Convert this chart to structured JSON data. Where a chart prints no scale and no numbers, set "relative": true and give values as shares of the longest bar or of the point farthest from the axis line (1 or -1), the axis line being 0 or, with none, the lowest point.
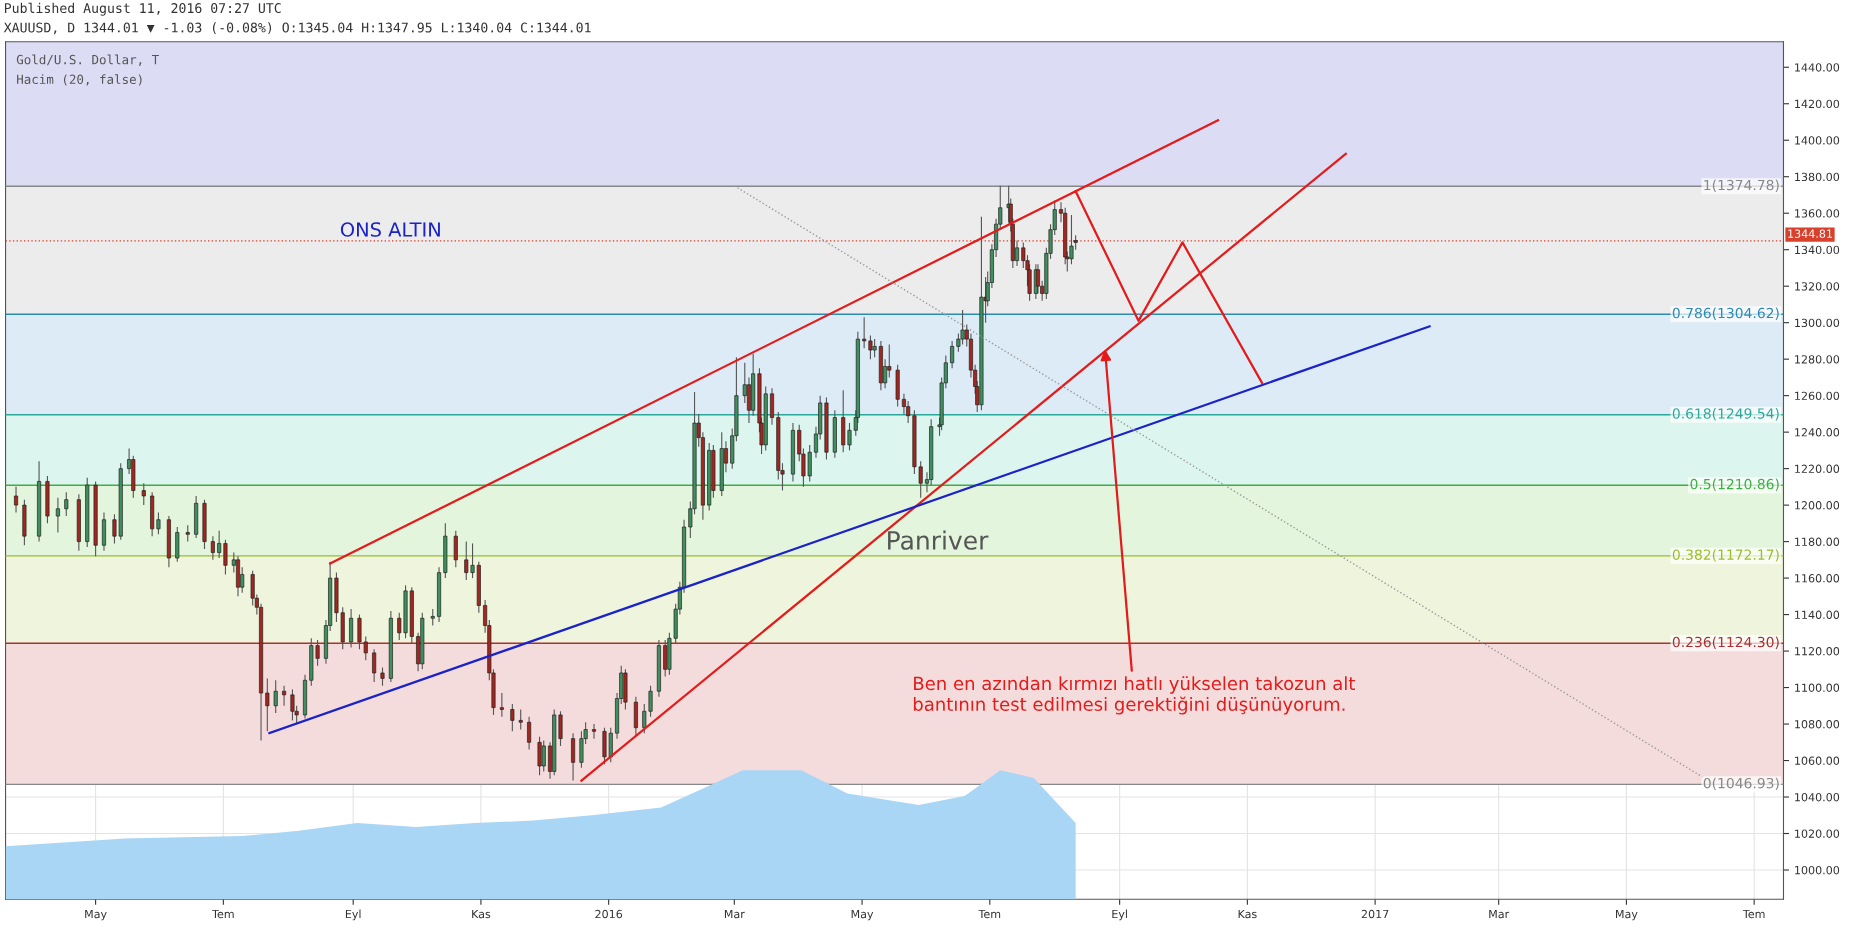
{
  "chart_data": [
    {
      "type": "candlestick",
      "grid": true,
      "annotations": [
        "Published August 11, 2016 07:27 UTC",
        "XAUUSD, D 1344.01 ▼ -1.03 (-0.08%) O:1345.04 H:1347.95 L:1340.04 C:1344.01",
        "Gold/U.S. Dollar, T",
        "Hacim (20, false)",
        "ONS ALTIN",
        "Panriver",
        {
          "text": "Ben en azından kırmızı hatlı yükselen takozun alt\nbantının test edilmesi gerektiğini düşünüyorum.",
          "x": "2016-08-25",
          "y": 1285.4
        }
      ],
      "xlim": [
        "2015-03-19",
        "2017-07-15"
      ],
      "xticks": [
        {
          "value": "2015-05-01",
          "label": "May"
        },
        {
          "value": "2015-07-01",
          "label": "Tem"
        },
        {
          "value": "2015-09-01",
          "label": "Eyl"
        },
        {
          "value": "2015-11-01",
          "label": "Kas"
        },
        {
          "value": "2016-01-01",
          "label": "2016"
        },
        {
          "value": "2016-03-01",
          "label": "Mar"
        },
        {
          "value": "2016-05-01",
          "label": "May"
        },
        {
          "value": "2016-07-01",
          "label": "Tem"
        },
        {
          "value": "2016-09-01",
          "label": "Eyl"
        },
        {
          "value": "2016-11-01",
          "label": "Kas"
        },
        {
          "value": "2017-01-01",
          "label": "2017"
        },
        {
          "value": "2017-03-01",
          "label": "Mar"
        },
        {
          "value": "2017-05-01",
          "label": "May"
        },
        {
          "value": "2017-07-01",
          "label": "Tem"
        }
      ],
      "ylim": [
        984,
        1454
      ],
      "yticks": [
        {
          "value": 1000,
          "label": "1000.00"
        },
        {
          "value": 1020,
          "label": "1020.00"
        },
        {
          "value": 1040,
          "label": "1040.00"
        },
        {
          "value": 1060,
          "label": "1060.00"
        },
        {
          "value": 1080,
          "label": "1080.00"
        },
        {
          "value": 1100,
          "label": "1100.00"
        },
        {
          "value": 1120,
          "label": "1120.00"
        },
        {
          "value": 1140,
          "label": "1140.00"
        },
        {
          "value": 1160,
          "label": "1160.00"
        },
        {
          "value": 1180,
          "label": "1180.00"
        },
        {
          "value": 1200,
          "label": "1200.00"
        },
        {
          "value": 1220,
          "label": "1220.00"
        },
        {
          "value": 1240,
          "label": "1240.00"
        },
        {
          "value": 1260,
          "label": "1260.00"
        },
        {
          "value": 1280,
          "label": "1280.00"
        },
        {
          "value": 1300,
          "label": "1300.00"
        },
        {
          "value": 1320,
          "label": "1320.00"
        },
        {
          "value": 1340,
          "label": "1340.00"
        },
        {
          "value": 1360,
          "label": "1360.00"
        },
        {
          "value": 1380,
          "label": "1380.00"
        },
        {
          "value": 1400,
          "label": "1400.00"
        },
        {
          "value": 1420,
          "label": "1420.00"
        },
        {
          "value": 1440,
          "label": "1440.00"
        }
      ],
      "bands": [
        {
          "axis": "y",
          "from": 1374.78,
          "to": 1454,
          "color": "#dcdcf5"
        },
        {
          "axis": "y",
          "from": 1304.62,
          "to": 1374.78,
          "color": "#ececec"
        },
        {
          "axis": "y",
          "from": 1249.54,
          "to": 1304.62,
          "color": "#ddebf6"
        },
        {
          "axis": "y",
          "from": 1210.86,
          "to": 1249.54,
          "color": "#ddf5ef"
        },
        {
          "axis": "y",
          "from": 1172.17,
          "to": 1210.86,
          "color": "#e3f5dc"
        },
        {
          "axis": "y",
          "from": 1124.3,
          "to": 1172.17,
          "color": "#eef5dc"
        },
        {
          "axis": "y",
          "from": 1046.93,
          "to": 1124.3,
          "color": "#f5dcdc"
        }
      ],
      "ref_lines": [
        {
          "axis": "y",
          "value": 1374.78,
          "label": "1(1374.78)",
          "color": "#888888"
        },
        {
          "axis": "y",
          "value": 1304.62,
          "label": "0.786(1304.62)",
          "color": "#2a8ab8"
        },
        {
          "axis": "y",
          "value": 1249.54,
          "label": "0.618(1249.54)",
          "color": "#2aa89a"
        },
        {
          "axis": "y",
          "value": 1210.86,
          "label": "0.5(1210.86)",
          "color": "#3cb043"
        },
        {
          "axis": "y",
          "value": 1172.17,
          "label": "0.382(1172.17)",
          "color": "#9cbc2c"
        },
        {
          "axis": "y",
          "value": 1124.3,
          "label": "0.236(1124.30)",
          "color": "#a83232"
        },
        {
          "axis": "y",
          "value": 1046.93,
          "label": "0(1046.93)",
          "color": "#888888"
        },
        {
          "axis": "y",
          "value": 1344.81,
          "label": "1344.81",
          "color": "#d9402b",
          "line_style": "dotted"
        }
      ],
      "series": [
        {
          "type": "line",
          "color": "#e31b1b",
          "x": [
            "2015-08-21",
            "2016-10-18"
          ],
          "values": [
            1168,
            1411
          ]
        },
        {
          "type": "line",
          "color": "#e31b1b",
          "x": [
            "2015-12-19",
            "2016-12-18"
          ],
          "values": [
            1049,
            1392.6
          ]
        },
        {
          "type": "line",
          "color": "#1a22c8",
          "x": [
            "2015-07-23",
            "2017-01-27"
          ],
          "values": [
            1075,
            1298
          ]
        },
        {
          "type": "line",
          "color": "#999999",
          "line_style": "dotted",
          "x": [
            "2016-03-01",
            "2017-06-12"
          ],
          "values": [
            1375,
            1047
          ]
        },
        {
          "type": "line",
          "color": "#e31b1b",
          "x": [
            "2016-08-11",
            "2016-09-10",
            "2016-10-01",
            "2016-11-08"
          ],
          "values": [
            1372,
            1301,
            1344,
            1267
          ]
        },
        {
          "type": "candlestick",
          "colors": [
            "#a3261f",
            "#a3261f",
            "#3f8f5f",
            "#a3261f",
            "#3f8f5f",
            "#3f8f5f",
            "#a3261f",
            "#3f8f5f",
            "#a3261f",
            "#3f8f5f",
            "#a3261f",
            "#3f8f5f",
            "#3f8f5f",
            "#a3261f",
            "#a3261f",
            "#a3261f",
            "#3f8f5f",
            "#a3261f",
            "#3f8f5f",
            "#a3261f",
            "#3f8f5f",
            "#a3261f",
            "#a3261f",
            "#3f8f5f",
            "#a3261f",
            "#3f8f5f",
            "#a3261f",
            "#3f8f5f",
            "#a3261f",
            "#a3261f",
            "#a3261f",
            "#a3261f",
            "#3f8f5f",
            "#a3261f",
            "#a3261f",
            "#a3261f",
            "#3f8f5f",
            "#3f8f5f",
            "#a3261f",
            "#3f8f5f",
            "#3f8f5f",
            "#a3261f",
            "#a3261f",
            "#3f8f5f",
            "#a3261f",
            "#a3261f",
            "#a3261f",
            "#a3261f",
            "#3f8f5f",
            "#a3261f",
            "#3f8f5f",
            "#a3261f",
            "#a3261f",
            "#3f8f5f",
            "#3f8f5f",
            "#3f8f5f",
            "#3f8f5f",
            "#a3261f",
            "#a3261f",
            "#3f8f5f",
            "#a3261f",
            "#a3261f",
            "#a3261f",
            "#a3261f",
            "#a3261f",
            "#a3261f",
            "#a3261f",
            "#a3261f",
            "#a3261f",
            "#3f8f5f",
            "#a3261f",
            "#3f8f5f",
            "#a3261f",
            "#a3261f",
            "#3f8f5f",
            "#3f8f5f",
            "#a3261f",
            "#a3261f",
            "#3f8f5f",
            "#3f8f5f",
            "#3f8f5f",
            "#a3261f",
            "#a3261f",
            "#3f8f5f",
            "#3f8f5f",
            "#3f8f5f",
            "#a3261f",
            "#3f8f5f",
            "#3f8f5f",
            "#3f8f5f",
            "#3f8f5f",
            "#3f8f5f",
            "#3f8f5f",
            "#a3261f",
            "#a3261f",
            "#3f8f5f",
            "#a3261f",
            "#3f8f5f",
            "#a3261f",
            "#3f8f5f",
            "#3f8f5f",
            "#3f8f5f",
            "#a3261f",
            "#3f8f5f",
            "#a3261f",
            "#a3261f",
            "#3f8f5f",
            "#a3261f",
            "#a3261f",
            "#a3261f",
            "#3f8f5f",
            "#a3261f",
            "#a3261f",
            "#3f8f5f",
            "#3f8f5f",
            "#3f8f5f",
            "#a3261f",
            "#3f8f5f",
            "#a3261f",
            "#3f8f5f",
            "#3f8f5f",
            "#3f8f5f",
            "#a3261f",
            "#a3261f",
            "#3f8f5f",
            "#a3261f",
            "#3f8f5f",
            "#a3261f",
            "#a3261f",
            "#a3261f",
            "#a3261f",
            "#a3261f",
            "#a3261f",
            "#3f8f5f",
            "#3f8f5f",
            "#3f8f5f",
            "#3f8f5f",
            "#3f8f5f",
            "#3f8f5f",
            "#3f8f5f",
            "#3f8f5f",
            "#a3261f",
            "#a3261f",
            "#a3261f",
            "#a3261f",
            "#3f8f5f",
            "#a3261f",
            "#3f8f5f",
            "#3f8f5f",
            "#3f8f5f",
            "#3f8f5f",
            "#3f8f5f",
            "#a3261f",
            "#a3261f",
            "#3f8f5f",
            "#a3261f",
            "#a3261f",
            "#a3261f",
            "#3f8f5f",
            "#a3261f",
            "#a3261f",
            "#3f8f5f",
            "#3f8f5f",
            "#3f8f5f",
            "#a3261f",
            "#a3261f",
            "#a3261f",
            "#3f8f5f",
            "#a3261f"
          ],
          "x": [
            "2015-03-24",
            "2015-03-28",
            "2015-04-04",
            "2015-04-08",
            "2015-04-13",
            "2015-04-17",
            "2015-04-23",
            "2015-04-27",
            "2015-05-01",
            "2015-05-05",
            "2015-05-10",
            "2015-05-13",
            "2015-05-17",
            "2015-05-19",
            "2015-05-24",
            "2015-05-28",
            "2015-05-31",
            "2015-06-05",
            "2015-06-09",
            "2015-06-14",
            "2015-06-18",
            "2015-06-22",
            "2015-06-26",
            "2015-06-29",
            "2015-07-02",
            "2015-07-06",
            "2015-07-08",
            "2015-07-10",
            "2015-07-15",
            "2015-07-17",
            "2015-07-19",
            "2015-07-22",
            "2015-07-26",
            "2015-07-30",
            "2015-08-03",
            "2015-08-05",
            "2015-08-09",
            "2015-08-12",
            "2015-08-15",
            "2015-08-19",
            "2015-08-21",
            "2015-08-24",
            "2015-08-27",
            "2015-08-31",
            "2015-09-04",
            "2015-09-07",
            "2015-09-11",
            "2015-09-15",
            "2015-09-19",
            "2015-09-23",
            "2015-09-26",
            "2015-09-29",
            "2015-10-02",
            "2015-10-04",
            "2015-10-09",
            "2015-10-12",
            "2015-10-15",
            "2015-10-20",
            "2015-10-25",
            "2015-10-28",
            "2015-10-31",
            "2015-11-03",
            "2015-11-05",
            "2015-11-07",
            "2015-11-11",
            "2015-11-16",
            "2015-11-20",
            "2015-11-24",
            "2015-11-29",
            "2015-12-01",
            "2015-12-04",
            "2015-12-06",
            "2015-12-09",
            "2015-12-15",
            "2015-12-19",
            "2015-12-21",
            "2015-12-25",
            "2015-12-30",
            "2016-01-02",
            "2016-01-05",
            "2016-01-07",
            "2016-01-09",
            "2016-01-14",
            "2016-01-18",
            "2016-01-21",
            "2016-01-25",
            "2016-01-28",
            "2016-01-30",
            "2016-02-02",
            "2016-02-04",
            "2016-02-06",
            "2016-02-09",
            "2016-02-11",
            "2016-02-13",
            "2016-02-15",
            "2016-02-18",
            "2016-02-20",
            "2016-02-24",
            "2016-02-26",
            "2016-02-29",
            "2016-03-02",
            "2016-03-06",
            "2016-03-08",
            "2016-03-10",
            "2016-03-13",
            "2016-03-14",
            "2016-03-16",
            "2016-03-19",
            "2016-03-22",
            "2016-03-24",
            "2016-03-29",
            "2016-04-01",
            "2016-04-03",
            "2016-04-06",
            "2016-04-09",
            "2016-04-11",
            "2016-04-14",
            "2016-04-18",
            "2016-04-22",
            "2016-04-25",
            "2016-04-28",
            "2016-04-29",
            "2016-05-02",
            "2016-05-05",
            "2016-05-07",
            "2016-05-10",
            "2016-05-12",
            "2016-05-14",
            "2016-05-18",
            "2016-05-21",
            "2016-05-23",
            "2016-05-26",
            "2016-05-29",
            "2016-06-01",
            "2016-06-03",
            "2016-06-07",
            "2016-06-08",
            "2016-06-10",
            "2016-06-13",
            "2016-06-16",
            "2016-06-18",
            "2016-06-20",
            "2016-06-22",
            "2016-06-24",
            "2016-06-25",
            "2016-06-27",
            "2016-06-29",
            "2016-06-30",
            "2016-07-02",
            "2016-07-04",
            "2016-07-06",
            "2016-07-10",
            "2016-07-11",
            "2016-07-12",
            "2016-07-14",
            "2016-07-17",
            "2016-07-19",
            "2016-07-20",
            "2016-07-23",
            "2016-07-24",
            "2016-07-26",
            "2016-07-28",
            "2016-07-30",
            "2016-08-01",
            "2016-08-04",
            "2016-08-06",
            "2016-08-07",
            "2016-08-09",
            "2016-08-11"
          ],
          "ohlc": [
            [
              1205,
              1210,
              1196,
              1200
            ],
            [
              1200,
              1203,
              1178,
              1183
            ],
            [
              1183,
              1224,
              1180,
              1213
            ],
            [
              1213,
              1216,
              1190,
              1194
            ],
            [
              1194,
              1204,
              1185,
              1198
            ],
            [
              1198,
              1207,
              1194,
              1203
            ],
            [
              1203,
              1206,
              1175,
              1180
            ],
            [
              1180,
              1215,
              1177,
              1211
            ],
            [
              1211,
              1213,
              1172,
              1178
            ],
            [
              1178,
              1196,
              1175,
              1192
            ],
            [
              1192,
              1195,
              1179,
              1183
            ],
            [
              1183,
              1223,
              1181,
              1220
            ],
            [
              1220,
              1231,
              1217,
              1225
            ],
            [
              1225,
              1227,
              1204,
              1208
            ],
            [
              1208,
              1212,
              1200,
              1205
            ],
            [
              1205,
              1207,
              1183,
              1187
            ],
            [
              1187,
              1196,
              1184,
              1192
            ],
            [
              1192,
              1194,
              1166,
              1171
            ],
            [
              1171,
              1188,
              1169,
              1185
            ],
            [
              1185,
              1189,
              1180,
              1184
            ],
            [
              1184,
              1205,
              1182,
              1201
            ],
            [
              1201,
              1203,
              1176,
              1180
            ],
            [
              1180,
              1183,
              1170,
              1174
            ],
            [
              1174,
              1186,
              1171,
              1179
            ],
            [
              1179,
              1181,
              1162,
              1167
            ],
            [
              1167,
              1174,
              1163,
              1170
            ],
            [
              1170,
              1172,
              1150,
              1155
            ],
            [
              1155,
              1166,
              1152,
              1162
            ],
            [
              1162,
              1164,
              1145,
              1149
            ],
            [
              1149,
              1151,
              1140,
              1144
            ],
            [
              1144,
              1146,
              1071,
              1097
            ],
            [
              1097,
              1105,
              1076,
              1090
            ],
            [
              1090,
              1104,
              1086,
              1098
            ],
            [
              1098,
              1101,
              1090,
              1096
            ],
            [
              1096,
              1099,
              1082,
              1087
            ],
            [
              1087,
              1090,
              1080,
              1085
            ],
            [
              1085,
              1107,
              1083,
              1104
            ],
            [
              1104,
              1127,
              1101,
              1123
            ],
            [
              1123,
              1126,
              1112,
              1116
            ],
            [
              1116,
              1137,
              1113,
              1134
            ],
            [
              1134,
              1169,
              1131,
              1160
            ],
            [
              1160,
              1163,
              1136,
              1141
            ],
            [
              1141,
              1144,
              1121,
              1125
            ],
            [
              1125,
              1143,
              1122,
              1138
            ],
            [
              1138,
              1140,
              1121,
              1125
            ],
            [
              1125,
              1128,
              1115,
              1119
            ],
            [
              1119,
              1121,
              1103,
              1108
            ],
            [
              1108,
              1111,
              1101,
              1105
            ],
            [
              1105,
              1142,
              1103,
              1138
            ],
            [
              1138,
              1141,
              1126,
              1130
            ],
            [
              1130,
              1156,
              1127,
              1153
            ],
            [
              1153,
              1155,
              1124,
              1128
            ],
            [
              1128,
              1130,
              1109,
              1113
            ],
            [
              1113,
              1141,
              1110,
              1138
            ],
            [
              1138,
              1143,
              1134,
              1139
            ],
            [
              1139,
              1166,
              1136,
              1163
            ],
            [
              1163,
              1190,
              1160,
              1183
            ],
            [
              1183,
              1186,
              1166,
              1170
            ],
            [
              1170,
              1180,
              1159,
              1163
            ],
            [
              1163,
              1179,
              1160,
              1167
            ],
            [
              1167,
              1169,
              1141,
              1145
            ],
            [
              1145,
              1148,
              1130,
              1134
            ],
            [
              1134,
              1137,
              1104,
              1108
            ],
            [
              1108,
              1110,
              1085,
              1089
            ],
            [
              1089,
              1097,
              1084,
              1088
            ],
            [
              1088,
              1091,
              1076,
              1082
            ],
            [
              1082,
              1088,
              1077,
              1081
            ],
            [
              1081,
              1084,
              1066,
              1070
            ],
            [
              1070,
              1073,
              1052,
              1057
            ],
            [
              1057,
              1071,
              1054,
              1068
            ],
            [
              1068,
              1070,
              1050,
              1054
            ],
            [
              1054,
              1088,
              1052,
              1085
            ],
            [
              1085,
              1087,
              1068,
              1072
            ],
            [
              1072,
              1075,
              1049,
              1059
            ],
            [
              1059,
              1076,
              1056,
              1072
            ],
            [
              1072,
              1081,
              1069,
              1077
            ],
            [
              1077,
              1080,
              1072,
              1076
            ],
            [
              1076,
              1078,
              1058,
              1062
            ],
            [
              1062,
              1078,
              1059,
              1075
            ],
            [
              1075,
              1097,
              1072,
              1094
            ],
            [
              1094,
              1112,
              1091,
              1108
            ],
            [
              1108,
              1110,
              1088,
              1092
            ],
            [
              1092,
              1095,
              1074,
              1078
            ],
            [
              1078,
              1091,
              1075,
              1087
            ],
            [
              1087,
              1101,
              1084,
              1098
            ],
            [
              1098,
              1126,
              1095,
              1123
            ],
            [
              1123,
              1126,
              1106,
              1110
            ],
            [
              1110,
              1130,
              1107,
              1127
            ],
            [
              1127,
              1146,
              1124,
              1143
            ],
            [
              1143,
              1158,
              1140,
              1155
            ],
            [
              1155,
              1192,
              1152,
              1188
            ],
            [
              1188,
              1202,
              1182,
              1198
            ],
            [
              1198,
              1262,
              1195,
              1245
            ],
            [
              1245,
              1250,
              1232,
              1237
            ],
            [
              1237,
              1240,
              1192,
              1200
            ],
            [
              1200,
              1234,
              1197,
              1230
            ],
            [
              1230,
              1233,
              1204,
              1208
            ],
            [
              1208,
              1240,
              1205,
              1231
            ],
            [
              1231,
              1235,
              1218,
              1223
            ],
            [
              1223,
              1242,
              1220,
              1238
            ],
            [
              1238,
              1281,
              1235,
              1260
            ],
            [
              1260,
              1278,
              1256,
              1266
            ],
            [
              1266,
              1270,
              1245,
              1252
            ],
            [
              1252,
              1283,
              1249,
              1272
            ],
            [
              1272,
              1275,
              1240,
              1245
            ],
            [
              1245,
              1248,
              1228,
              1233
            ],
            [
              1233,
              1265,
              1230,
              1261
            ],
            [
              1261,
              1264,
              1244,
              1248
            ],
            [
              1248,
              1251,
              1214,
              1219
            ],
            [
              1219,
              1223,
              1208,
              1217
            ],
            [
              1217,
              1245,
              1213,
              1241
            ],
            [
              1241,
              1244,
              1224,
              1228
            ],
            [
              1228,
              1231,
              1210,
              1216
            ],
            [
              1216,
              1233,
              1213,
              1229
            ],
            [
              1229,
              1243,
              1226,
              1239
            ],
            [
              1239,
              1260,
              1236,
              1256
            ],
            [
              1256,
              1259,
              1225,
              1229
            ],
            [
              1229,
              1252,
              1226,
              1248
            ],
            [
              1248,
              1263,
              1229,
              1233
            ],
            [
              1233,
              1245,
              1230,
              1241
            ],
            [
              1241,
              1252,
              1238,
              1248
            ],
            [
              1248,
              1295,
              1245,
              1291
            ],
            [
              1291,
              1303,
              1286,
              1290
            ],
            [
              1290,
              1293,
              1280,
              1285
            ],
            [
              1285,
              1291,
              1281,
              1287
            ],
            [
              1287,
              1290,
              1263,
              1267
            ],
            [
              1267,
              1280,
              1264,
              1276
            ],
            [
              1276,
              1288,
              1270,
              1274
            ],
            [
              1274,
              1277,
              1254,
              1258
            ],
            [
              1258,
              1261,
              1250,
              1254
            ],
            [
              1254,
              1257,
              1245,
              1249
            ],
            [
              1249,
              1252,
              1217,
              1221
            ],
            [
              1221,
              1224,
              1204,
              1212
            ],
            [
              1212,
              1218,
              1207,
              1214
            ],
            [
              1214,
              1247,
              1211,
              1243
            ],
            [
              1243,
              1248,
              1238,
              1244
            ],
            [
              1244,
              1270,
              1241,
              1267
            ],
            [
              1267,
              1282,
              1264,
              1278
            ],
            [
              1278,
              1290,
              1275,
              1287
            ],
            [
              1287,
              1294,
              1284,
              1291
            ],
            [
              1291,
              1307,
              1288,
              1296
            ],
            [
              1296,
              1299,
              1287,
              1291
            ],
            [
              1291,
              1294,
              1270,
              1274
            ],
            [
              1274,
              1277,
              1261,
              1265
            ],
            [
              1265,
              1268,
              1251,
              1255
            ],
            [
              1255,
              1358,
              1252,
              1314
            ],
            [
              1314,
              1325,
              1300,
              1312
            ],
            [
              1312,
              1328,
              1309,
              1322
            ],
            [
              1322,
              1343,
              1319,
              1340
            ],
            [
              1340,
              1357,
              1336,
              1354
            ],
            [
              1354,
              1375,
              1351,
              1363
            ],
            [
              1363,
              1375,
              1355,
              1365
            ],
            [
              1365,
              1368,
              1350,
              1354
            ],
            [
              1354,
              1357,
              1330,
              1334
            ],
            [
              1334,
              1345,
              1331,
              1341
            ],
            [
              1341,
              1344,
              1330,
              1334
            ],
            [
              1334,
              1337,
              1320,
              1329
            ],
            [
              1329,
              1332,
              1312,
              1316
            ],
            [
              1316,
              1332,
              1313,
              1329
            ],
            [
              1329,
              1332,
              1316,
              1320
            ],
            [
              1320,
              1323,
              1312,
              1316
            ],
            [
              1316,
              1341,
              1313,
              1338
            ],
            [
              1338,
              1354,
              1335,
              1351
            ],
            [
              1351,
              1367,
              1348,
              1362
            ],
            [
              1362,
              1366,
              1355,
              1360
            ],
            [
              1360,
              1363,
              1332,
              1336
            ],
            [
              1336,
              1339,
              1328,
              1335
            ],
            [
              1335,
              1359,
              1332,
              1342
            ],
            [
              1345.04,
              1347.95,
              1340.04,
              1344.01
            ]
          ]
        }
      ]
    },
    {
      "type": "area",
      "relative": true,
      "tick_labels": false,
      "xlim": [
        "2015-03-19",
        "2017-07-15"
      ],
      "series": [
        {
          "color": "#a9d6f5",
          "x": [
            "2015-03-19",
            "2015-05-15",
            "2015-07-10",
            "2015-08-06",
            "2015-09-03",
            "2015-10-01",
            "2015-10-29",
            "2015-11-26",
            "2015-12-24",
            "2016-01-26",
            "2016-02-18",
            "2016-03-05",
            "2016-04-02",
            "2016-04-24",
            "2016-05-28",
            "2016-06-19",
            "2016-07-06",
            "2016-07-22",
            "2016-08-11"
          ],
          "values": [
            0.41,
            0.47,
            0.49,
            0.53,
            0.59,
            0.56,
            0.59,
            0.61,
            0.65,
            0.71,
            0.88,
            1,
            1,
            0.82,
            0.73,
            0.8,
            1,
            0.94,
            0.59
          ]
        }
      ]
    }
  ]
}
